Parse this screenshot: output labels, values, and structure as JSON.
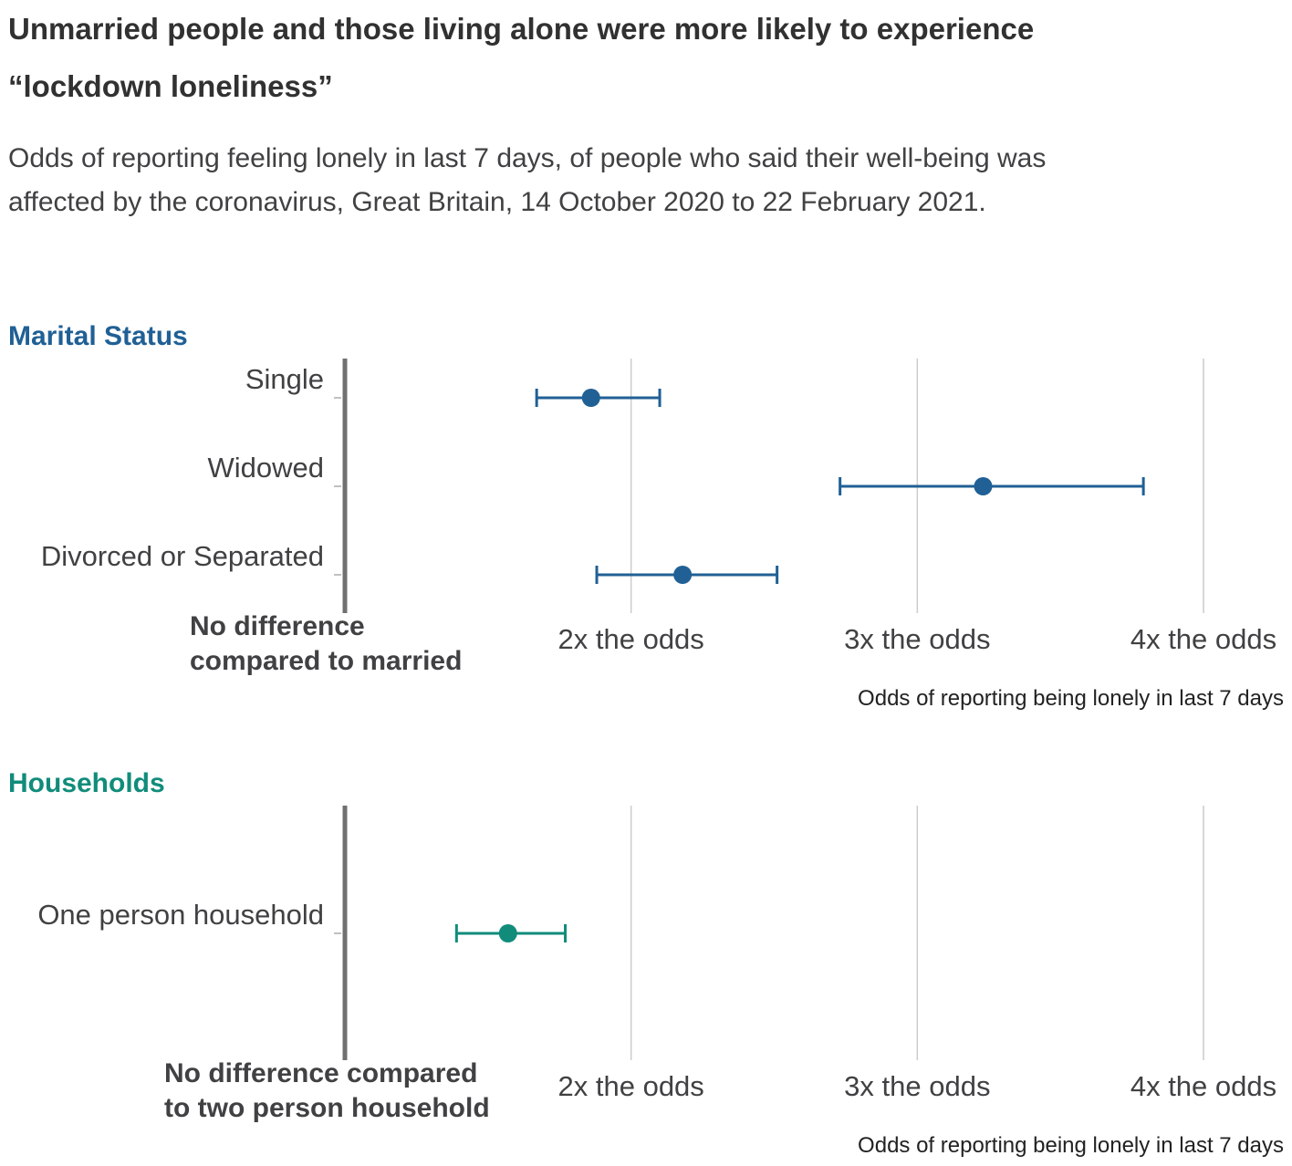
{
  "title": "Unmarried people and those living alone were more likely to experience “lockdown loneliness”",
  "subtitle": "Odds of reporting feeling lonely in last 7 days, of people who said their well-being was affected by the coronavirus, Great Britain, 14 October 2020 to 22 February 2021.",
  "colors": {
    "marital": "#206095",
    "households": "#118c7b",
    "baseline": "#707070",
    "grid": "#cccccc"
  },
  "chart_data": [
    {
      "type": "scatter",
      "title": "Marital Status",
      "xlabel": "Odds of reporting being lonely in last 7 days",
      "baseline_label": [
        "No difference",
        "compared to married"
      ],
      "xlim": [
        1,
        4
      ],
      "xticks": [
        {
          "value": 2,
          "label": "2x the odds"
        },
        {
          "value": 3,
          "label": "3x the odds"
        },
        {
          "value": 4,
          "label": "4x the odds"
        }
      ],
      "categories": [
        "Single",
        "Widowed",
        "Divorced or Separated"
      ],
      "estimates": [
        1.86,
        3.23,
        2.18
      ],
      "lower": [
        1.67,
        2.73,
        1.88
      ],
      "upper": [
        2.1,
        3.79,
        2.51
      ]
    },
    {
      "type": "scatter",
      "title": "Households",
      "xlabel": "Odds of reporting being lonely in last 7 days",
      "baseline_label": [
        "No difference compared",
        "to two person household"
      ],
      "xlim": [
        1,
        4
      ],
      "xticks": [
        {
          "value": 2,
          "label": "2x the odds"
        },
        {
          "value": 3,
          "label": "3x the odds"
        },
        {
          "value": 4,
          "label": "4x the odds"
        }
      ],
      "categories": [
        "One person household"
      ],
      "estimates": [
        1.57
      ],
      "lower": [
        1.39
      ],
      "upper": [
        1.77
      ]
    }
  ]
}
